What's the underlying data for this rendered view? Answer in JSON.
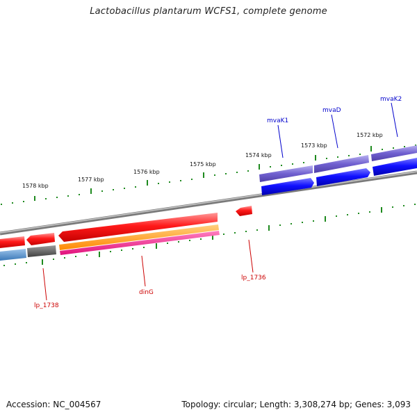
{
  "title": "Lactobacillus plantarum WCFS1, complete genome",
  "footer": {
    "accession": "Accession: NC_004567",
    "topology": "Topology: circular; Length: 3,308,274 bp; Genes: 3,093"
  },
  "ticks": [
    "1578 kbp",
    "1577 kbp",
    "1576 kbp",
    "1575 kbp",
    "1574 kbp",
    "1573 kbp",
    "1572 kbp"
  ],
  "genes": {
    "mvaK1": "mvaK1",
    "mvaD": "mvaD",
    "mvaK2": "mvaK2",
    "lp_1738": "lp_1738",
    "dinG": "dinG",
    "lp_1736": "lp_1736"
  },
  "colors": {
    "backbone": "#8a8a8a",
    "tick": "#1e8a1e",
    "red_gene": "#e60000",
    "blue_gene": "#0000ee",
    "purple_gene": "#6a5acd",
    "orange": "#ff8c00",
    "pink": "#ff1493",
    "steelblue": "#4a86c0",
    "grey_gene": "#555555",
    "label_red": "#cc0000",
    "label_blue": "#0000cc"
  }
}
